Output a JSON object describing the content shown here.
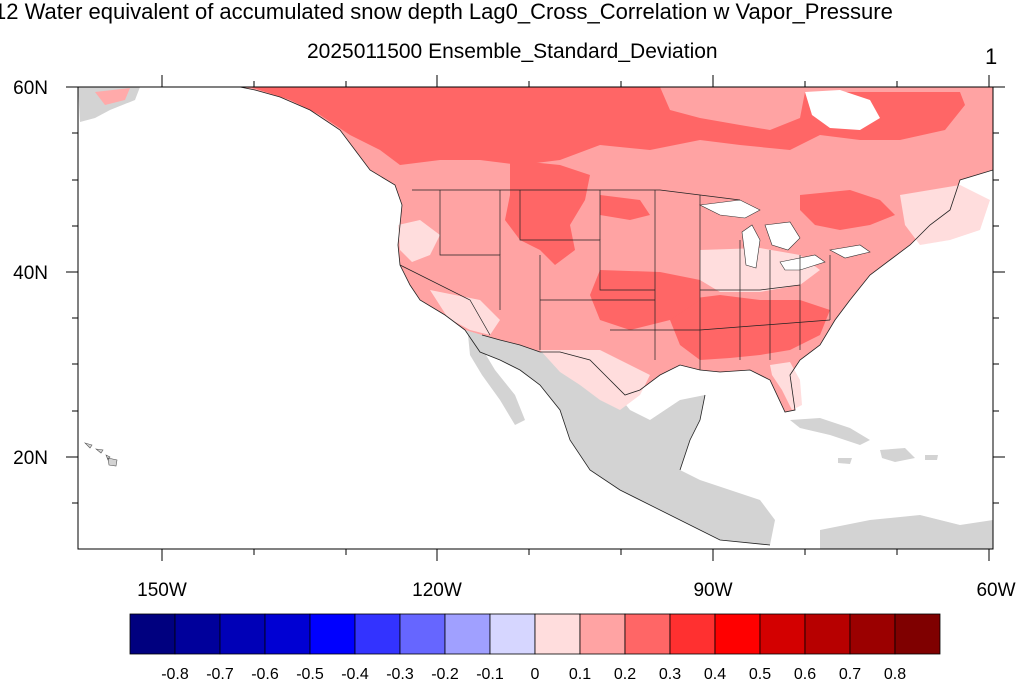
{
  "title": {
    "main": "12 Water equivalent of accumulated snow depth Lag0_Cross_Correlation w Vapor_Pressure",
    "subtitle": "2025011500 Ensemble_Standard_Deviation",
    "right_label": "1"
  },
  "map": {
    "lat_labels": [
      "60N",
      "40N",
      "20N"
    ],
    "lon_labels": [
      "150W",
      "120W",
      "90W",
      "60W"
    ],
    "land_color": "#d3d3d3",
    "ocean_color": "#ffffff"
  },
  "colorbar": {
    "colors": [
      "#00007f",
      "#00009b",
      "#0000b7",
      "#0000d3",
      "#0000ff",
      "#3333ff",
      "#6666ff",
      "#a0a0ff",
      "#d6d6ff",
      "#ffdddd",
      "#ffa3a3",
      "#ff6666",
      "#ff3030",
      "#ff0000",
      "#d30000",
      "#b70000",
      "#9b0000",
      "#7f0000"
    ],
    "labels": [
      "-0.8",
      "-0.7",
      "-0.6",
      "-0.5",
      "-0.4",
      "-0.3",
      "-0.2",
      "-0.1",
      "0",
      "0.1",
      "0.2",
      "0.3",
      "0.4",
      "0.5",
      "0.6",
      "0.7",
      "0.8"
    ]
  }
}
